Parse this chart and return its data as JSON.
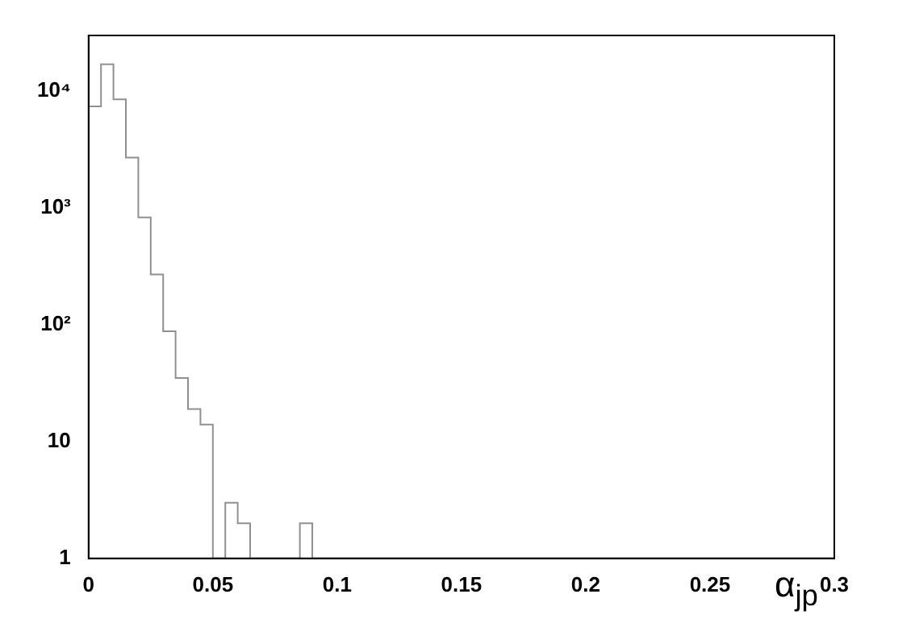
{
  "chart_data": {
    "type": "histogram",
    "xlabel": "α$_{jp}$",
    "bins": [
      0,
      0.005,
      0.01,
      0.015,
      0.02,
      0.025,
      0.03,
      0.035,
      0.04,
      0.045,
      0.05,
      0.055,
      0.06,
      0.065,
      0.07,
      0.075,
      0.08,
      0.085,
      0.09,
      0.095,
      0.1,
      0.105,
      0.11,
      0.115,
      0.12,
      0.125,
      0.13,
      0.135,
      0.14,
      0.145,
      0.15,
      0.155,
      0.16,
      0.165,
      0.17,
      0.175,
      0.18,
      0.185,
      0.19,
      0.195,
      0.2,
      0.205,
      0.21,
      0.215,
      0.22,
      0.225,
      0.23,
      0.235,
      0.24,
      0.245,
      0.25,
      0.255,
      0.26,
      0.265,
      0.27,
      0.275,
      0.28,
      0.285,
      0.29,
      0.295,
      0.3
    ],
    "values": [
      7400,
      17000,
      8500,
      2700,
      830,
      270,
      88,
      35,
      19,
      14,
      null,
      3,
      2,
      null,
      null,
      null,
      null,
      2,
      null,
      null,
      null,
      null,
      null,
      null,
      null,
      null,
      null,
      null,
      null,
      null,
      null,
      null,
      null,
      null,
      null,
      null,
      null,
      null,
      null,
      null,
      null,
      null,
      null,
      null,
      null,
      null,
      null,
      null,
      null,
      null,
      null,
      null,
      null,
      null,
      null,
      null,
      null,
      null,
      null,
      null
    ],
    "color": "#909090",
    "log": "y",
    "grid": false,
    "legend": false,
    "xlim": [
      0,
      0.3
    ],
    "xticks": [
      0,
      0.05,
      0.1,
      0.15,
      0.2,
      0.25,
      0.3
    ],
    "ylim": [
      1,
      30000
    ],
    "yticks": [
      1,
      10,
      {
        "value": 100,
        "label": "10²"
      },
      {
        "value": 1000,
        "label": "10³"
      },
      {
        "value": 10000,
        "label": "10⁴"
      }
    ]
  }
}
